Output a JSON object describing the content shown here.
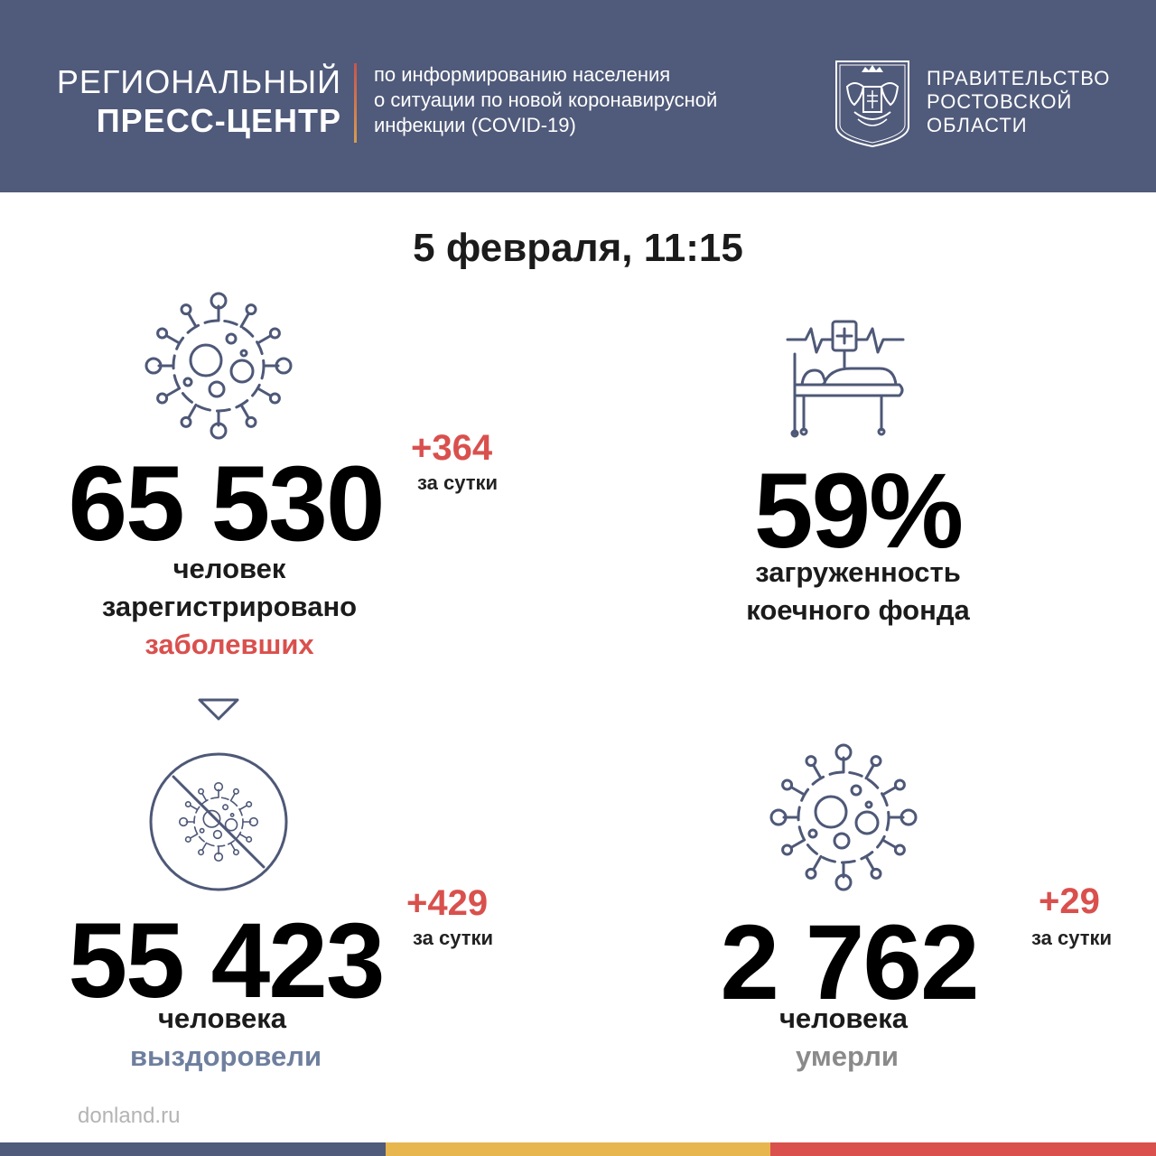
{
  "header": {
    "brand_line1": "РЕГИОНАЛЬНЫЙ",
    "brand_line2": "ПРЕСС-ЦЕНТР",
    "info_lines": [
      "по информированию населения",
      "о ситуации по новой коронавирусной",
      "инфекции (COVID-19)"
    ],
    "gov_lines": [
      "ПРАВИТЕЛЬСТВО",
      "РОСТОВСКОЙ",
      "ОБЛАСТИ"
    ],
    "crest_icon": "coat-of-arms-icon"
  },
  "date": "5 февраля, 11:15",
  "cases": {
    "icon": "virus-icon",
    "total": "65 530",
    "delta": "+364",
    "delta_label": "за сутки",
    "caption_line1": "человек",
    "caption_line2": "зарегистрировано",
    "caption_highlight": "заболевших"
  },
  "arrow_icon": "triangle-down-icon",
  "beds": {
    "icon": "hospital-bed-icon",
    "percent": "59%",
    "caption_line1": "загруженность",
    "caption_line2": "коечного фонда"
  },
  "recovered": {
    "icon": "crossed-virus-icon",
    "total": "55 423",
    "delta": "+429",
    "delta_label": "за сутки",
    "caption_line1": "человека",
    "caption_highlight": "выздоровели"
  },
  "deaths": {
    "icon": "virus-icon",
    "total": "2 762",
    "delta": "+29",
    "delta_label": "за сутки",
    "caption_line1": "человека",
    "caption_highlight": "умерли"
  },
  "footer": {
    "site": "donland.ru",
    "bar_colors": [
      "#505a7a",
      "#e8b64f",
      "#d9504d"
    ]
  },
  "colors": {
    "header_bg": "#505a7a",
    "accent_red": "#d9504d",
    "recovered_blue": "#6e7f9e",
    "deaths_grey": "#8a8a8a",
    "icon_stroke": "#4e5877"
  }
}
